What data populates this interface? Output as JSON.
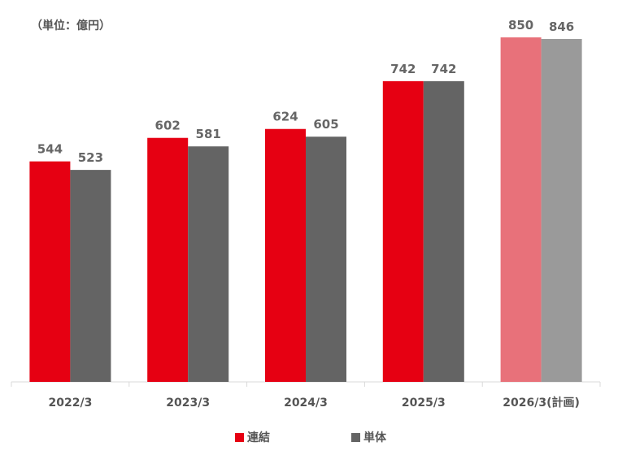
{
  "unit_label": "（単位：億円）",
  "chart_data": {
    "type": "bar",
    "categories": [
      "2022/3",
      "2023/3",
      "2024/3",
      "2025/3",
      "2026/3(計画)"
    ],
    "series": [
      {
        "name": "連結",
        "values": [
          544,
          602,
          624,
          742,
          850
        ],
        "color": "#e60012",
        "plan_color": "#e8717a"
      },
      {
        "name": "単体",
        "values": [
          523,
          581,
          605,
          742,
          846
        ],
        "color": "#646464",
        "plan_color": "#9a9a9a"
      }
    ],
    "data_labels": true,
    "plan_category_index": 4,
    "ylim": [
      0,
      850
    ],
    "grid": false,
    "legend_position": "bottom",
    "title": "",
    "xlabel": "",
    "ylabel": ""
  }
}
